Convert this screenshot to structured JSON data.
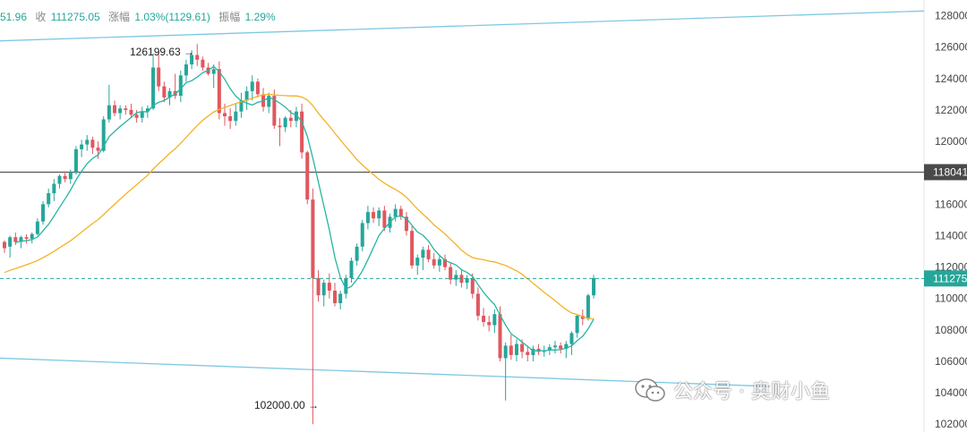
{
  "header": {
    "open_partial": "51.96",
    "close_label": "收",
    "close_value": "111275.05",
    "change_label": "涨幅",
    "change_value": "1.03%(1129.61)",
    "amplitude_label": "振幅",
    "amplitude_value": "1.29%"
  },
  "watermark": {
    "text": "公众号 · 奥财小鱼"
  },
  "colors": {
    "up": "#26a69a",
    "down": "#e0575f",
    "ma_fast": "#26b5a2",
    "ma_slow": "#f4b225",
    "channel": "#7ec8e3",
    "level": "#555555",
    "price": "#26a69a"
  },
  "chart_data": {
    "type": "candlestick",
    "y_axis": {
      "min": 101500,
      "max": 129000,
      "ticks": [
        "128000",
        "126000",
        "124000",
        "122000",
        "120000",
        "118000",
        "116000",
        "114000",
        "112000",
        "110000",
        "108000",
        "106000",
        "104000",
        "102000"
      ]
    },
    "annotations": {
      "high_label": "126199.63",
      "low_label": "102000.00"
    },
    "horizontal_level": {
      "value": 118041,
      "label": "118041"
    },
    "current_price": {
      "value": 111275,
      "label": "111275"
    },
    "channel": {
      "upper": [
        [
          0,
          126400
        ],
        [
          1032,
          128300
        ]
      ],
      "lower": [
        [
          0,
          106200
        ],
        [
          860,
          104400
        ]
      ]
    },
    "ma_fast_name": "",
    "ma_slow_name": "",
    "candles": [
      [
        113600,
        113700,
        112900,
        113200
      ],
      [
        113300,
        114000,
        112600,
        113900
      ],
      [
        113900,
        114200,
        113400,
        113600
      ],
      [
        113600,
        114000,
        113200,
        113900
      ],
      [
        113900,
        114100,
        113500,
        113800
      ],
      [
        113800,
        114200,
        113500,
        114100
      ],
      [
        114100,
        115100,
        114000,
        114900
      ],
      [
        114900,
        116200,
        114700,
        116000
      ],
      [
        116000,
        117000,
        115800,
        116700
      ],
      [
        116700,
        117600,
        116200,
        117300
      ],
      [
        117300,
        117900,
        117000,
        117800
      ],
      [
        117800,
        118100,
        117400,
        117600
      ],
      [
        117600,
        118200,
        117300,
        118000
      ],
      [
        118000,
        119700,
        117900,
        119500
      ],
      [
        119500,
        120100,
        119000,
        119800
      ],
      [
        119800,
        120400,
        119400,
        120100
      ],
      [
        120100,
        120300,
        119200,
        119600
      ],
      [
        119600,
        120000,
        118900,
        119400
      ],
      [
        119400,
        121600,
        119300,
        121400
      ],
      [
        121400,
        123600,
        121200,
        122300
      ],
      [
        122300,
        122600,
        121600,
        121800
      ],
      [
        121800,
        122300,
        121400,
        122100
      ],
      [
        122100,
        122300,
        121700,
        122000
      ],
      [
        122000,
        122400,
        121500,
        121700
      ],
      [
        121700,
        122000,
        121200,
        121500
      ],
      [
        121500,
        122200,
        121200,
        121900
      ],
      [
        121900,
        122300,
        121500,
        122100
      ],
      [
        122100,
        125600,
        122000,
        124700
      ],
      [
        124700,
        125700,
        123200,
        123500
      ],
      [
        123500,
        123800,
        122500,
        122800
      ],
      [
        122800,
        123400,
        122300,
        123200
      ],
      [
        123200,
        124300,
        122700,
        122900
      ],
      [
        122900,
        124500,
        122500,
        124200
      ],
      [
        124200,
        125200,
        123800,
        124900
      ],
      [
        124900,
        125800,
        124600,
        125500
      ],
      [
        125500,
        126200,
        124800,
        125200
      ],
      [
        125200,
        125400,
        124500,
        124700
      ],
      [
        124700,
        125000,
        124200,
        124300
      ],
      [
        124300,
        124900,
        123400,
        124600
      ],
      [
        124600,
        125100,
        121400,
        121800
      ],
      [
        121800,
        122400,
        121000,
        121600
      ],
      [
        121600,
        122100,
        120800,
        121300
      ],
      [
        121300,
        122400,
        121000,
        121900
      ],
      [
        121900,
        123100,
        121500,
        122600
      ],
      [
        122600,
        123500,
        122000,
        123200
      ],
      [
        123200,
        124200,
        122600,
        123800
      ],
      [
        123800,
        124000,
        122800,
        123000
      ],
      [
        123000,
        123400,
        121900,
        122200
      ],
      [
        122200,
        123100,
        121800,
        122900
      ],
      [
        122900,
        123300,
        120800,
        121000
      ],
      [
        121000,
        121500,
        119700,
        120900
      ],
      [
        120900,
        121600,
        120600,
        121500
      ],
      [
        121500,
        122000,
        120900,
        121300
      ],
      [
        121300,
        122200,
        120900,
        121900
      ],
      [
        121900,
        122400,
        118900,
        119300
      ],
      [
        119300,
        119400,
        116000,
        116300
      ],
      [
        116300,
        117000,
        102000,
        111300
      ],
      [
        111300,
        111800,
        109800,
        110200
      ],
      [
        110200,
        111200,
        109500,
        111000
      ],
      [
        111000,
        111600,
        110000,
        110500
      ],
      [
        110500,
        111000,
        109500,
        109700
      ],
      [
        109700,
        110500,
        109300,
        110300
      ],
      [
        110300,
        111500,
        110000,
        111300
      ],
      [
        111300,
        112600,
        111000,
        112400
      ],
      [
        112400,
        113500,
        112100,
        113300
      ],
      [
        113300,
        115000,
        113000,
        114800
      ],
      [
        114800,
        115900,
        114400,
        115500
      ],
      [
        115500,
        115800,
        114800,
        115100
      ],
      [
        115100,
        115800,
        114600,
        115600
      ],
      [
        115600,
        115900,
        114300,
        114500
      ],
      [
        114500,
        115400,
        114200,
        115200
      ],
      [
        115200,
        116000,
        114900,
        115700
      ],
      [
        115700,
        115900,
        115000,
        115200
      ],
      [
        115200,
        115500,
        114000,
        114300
      ],
      [
        114300,
        114600,
        111900,
        112100
      ],
      [
        112100,
        112800,
        111500,
        112600
      ],
      [
        112600,
        113300,
        111800,
        113100
      ],
      [
        113100,
        113400,
        112300,
        112500
      ],
      [
        112500,
        112900,
        111900,
        112100
      ],
      [
        112100,
        112700,
        111700,
        112500
      ],
      [
        112500,
        112800,
        111800,
        112000
      ],
      [
        112000,
        112300,
        110900,
        111200
      ],
      [
        111200,
        111800,
        110800,
        111500
      ],
      [
        111500,
        111800,
        110700,
        111000
      ],
      [
        111000,
        111500,
        110600,
        111300
      ],
      [
        111300,
        111600,
        110000,
        110300
      ],
      [
        110300,
        110700,
        108600,
        108900
      ],
      [
        108900,
        109400,
        108200,
        108500
      ],
      [
        108500,
        108900,
        107900,
        108300
      ],
      [
        108300,
        109300,
        107800,
        109000
      ],
      [
        109000,
        109500,
        106000,
        106200
      ],
      [
        106200,
        107200,
        103500,
        107000
      ],
      [
        107000,
        107700,
        106100,
        106400
      ],
      [
        106400,
        107400,
        106000,
        107100
      ],
      [
        107100,
        107400,
        106200,
        106600
      ],
      [
        106600,
        107000,
        106000,
        106400
      ],
      [
        106400,
        107000,
        106000,
        106800
      ],
      [
        106800,
        107100,
        106400,
        106600
      ],
      [
        106600,
        107000,
        106300,
        106700
      ],
      [
        106700,
        107100,
        106400,
        106900
      ],
      [
        106900,
        107300,
        106500,
        107000
      ],
      [
        107000,
        107200,
        106500,
        106800
      ],
      [
        106800,
        107300,
        106200,
        107100
      ],
      [
        107100,
        107900,
        106400,
        107800
      ],
      [
        107800,
        109000,
        107500,
        108900
      ],
      [
        108900,
        109300,
        108300,
        108700
      ],
      [
        108700,
        110300,
        108600,
        110200
      ],
      [
        110200,
        111500,
        110000,
        111300
      ]
    ]
  }
}
